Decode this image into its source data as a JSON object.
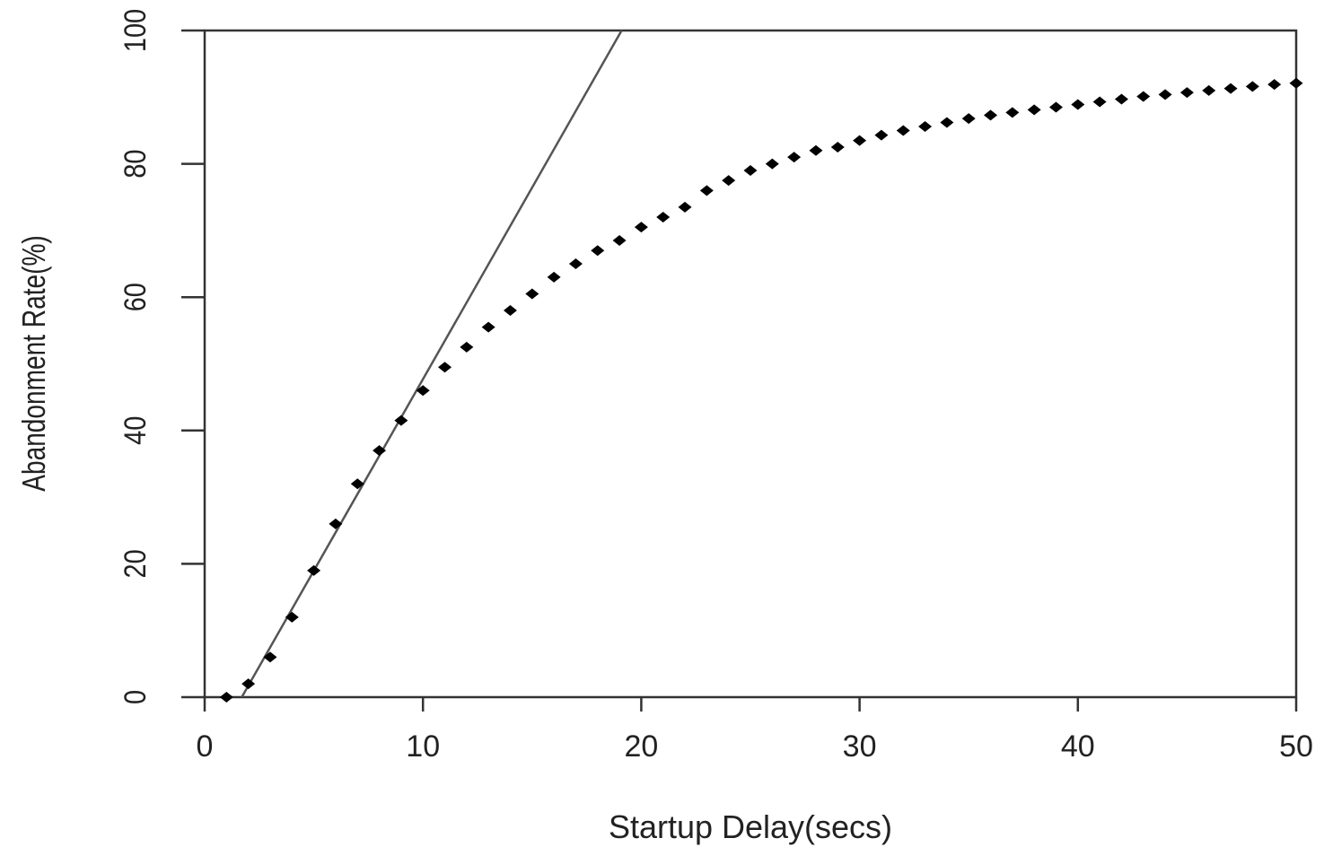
{
  "chart_data": {
    "type": "scatter",
    "title": "",
    "xlabel": "Startup Delay(secs)",
    "ylabel": "Abandonment Rate(%)",
    "xlim": [
      0,
      50
    ],
    "ylim": [
      0,
      100
    ],
    "xticks": [
      "0",
      "10",
      "20",
      "30",
      "40",
      "50"
    ],
    "yticks": [
      "0",
      "20",
      "40",
      "60",
      "80",
      "100"
    ],
    "grid": false,
    "colors": {
      "points": "#000000",
      "line": "#555555",
      "axes": "#333333"
    },
    "series": [
      {
        "kind": "points",
        "x": [
          1,
          2,
          3,
          4,
          5,
          6,
          7,
          8,
          9,
          10,
          11,
          12,
          13,
          14,
          15,
          16,
          17,
          18,
          19,
          20,
          21,
          22,
          23,
          24,
          25,
          26,
          27,
          28,
          29,
          30,
          31,
          32,
          33,
          34,
          35,
          36,
          37,
          38,
          39,
          40,
          41,
          42,
          43,
          44,
          45,
          46,
          47,
          48,
          49,
          50
        ],
        "y": [
          0,
          2,
          6,
          12,
          19,
          26,
          32,
          37,
          41.5,
          46,
          49.5,
          52.5,
          55.5,
          58,
          60.5,
          63,
          65,
          67,
          68.5,
          70.5,
          72,
          73.5,
          76,
          77.5,
          79,
          80,
          81,
          82,
          82.5,
          83.5,
          84.3,
          85,
          85.6,
          86.2,
          86.8,
          87.3,
          87.7,
          88.1,
          88.5,
          88.9,
          89.3,
          89.7,
          90.1,
          90.4,
          90.7,
          91,
          91.3,
          91.6,
          91.9,
          92.1
        ]
      },
      {
        "kind": "line",
        "x": [
          1.7,
          19.1
        ],
        "y": [
          0,
          100
        ]
      }
    ]
  }
}
